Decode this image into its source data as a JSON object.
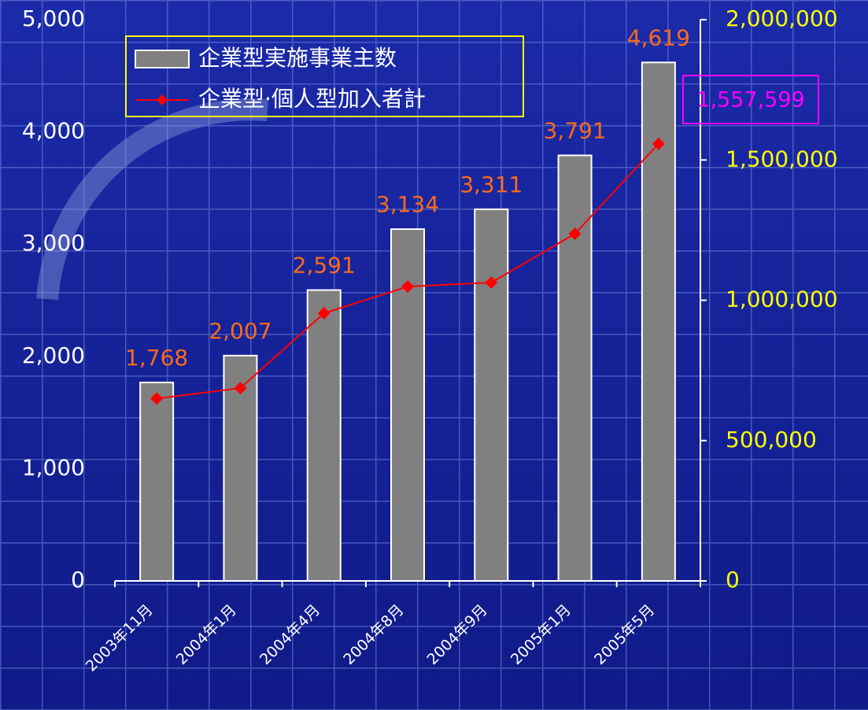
{
  "chart_data": {
    "type": "bar",
    "categories": [
      "2003年11月",
      "2004年1月",
      "2004年4月",
      "2004年8月",
      "2004年9月",
      "2005年1月",
      "2005年5月"
    ],
    "series": [
      {
        "name": "企業型実施事業主数",
        "color": "#808080",
        "values": [
          1768,
          2007,
          2591,
          3134,
          3311,
          3791,
          4619
        ],
        "value_labels": [
          "1,768",
          "2,007",
          "2,591",
          "3,134",
          "3,311",
          "3,791",
          "4,619"
        ]
      },
      {
        "name": "企業型·個人型加入者計",
        "type": "line",
        "axis": "y2",
        "color": "#ff0000",
        "values": [
          650000,
          687000,
          954000,
          1049000,
          1063000,
          1237000,
          1557599
        ],
        "value_labels": [
          null,
          null,
          null,
          null,
          null,
          null,
          "1,557,599"
        ]
      }
    ],
    "ylim": [
      0,
      5000
    ],
    "yticks": [
      0,
      {
        "value": 1000,
        "label": "1,000"
      },
      {
        "value": 2000,
        "label": "2,000"
      },
      {
        "value": 3000,
        "label": "3,000"
      },
      {
        "value": 4000,
        "label": "4,000"
      },
      {
        "value": 5000,
        "label": "5,000"
      }
    ],
    "y2lim": [
      0,
      2000000
    ],
    "y2ticks": [
      0,
      {
        "value": 500000,
        "label": "500,000"
      },
      {
        "value": 1000000,
        "label": "1,000,000"
      },
      {
        "value": 1500000,
        "label": "1,500,000"
      },
      {
        "value": 2000000,
        "label": "2,000,000"
      }
    ],
    "legend": "upper left"
  }
}
